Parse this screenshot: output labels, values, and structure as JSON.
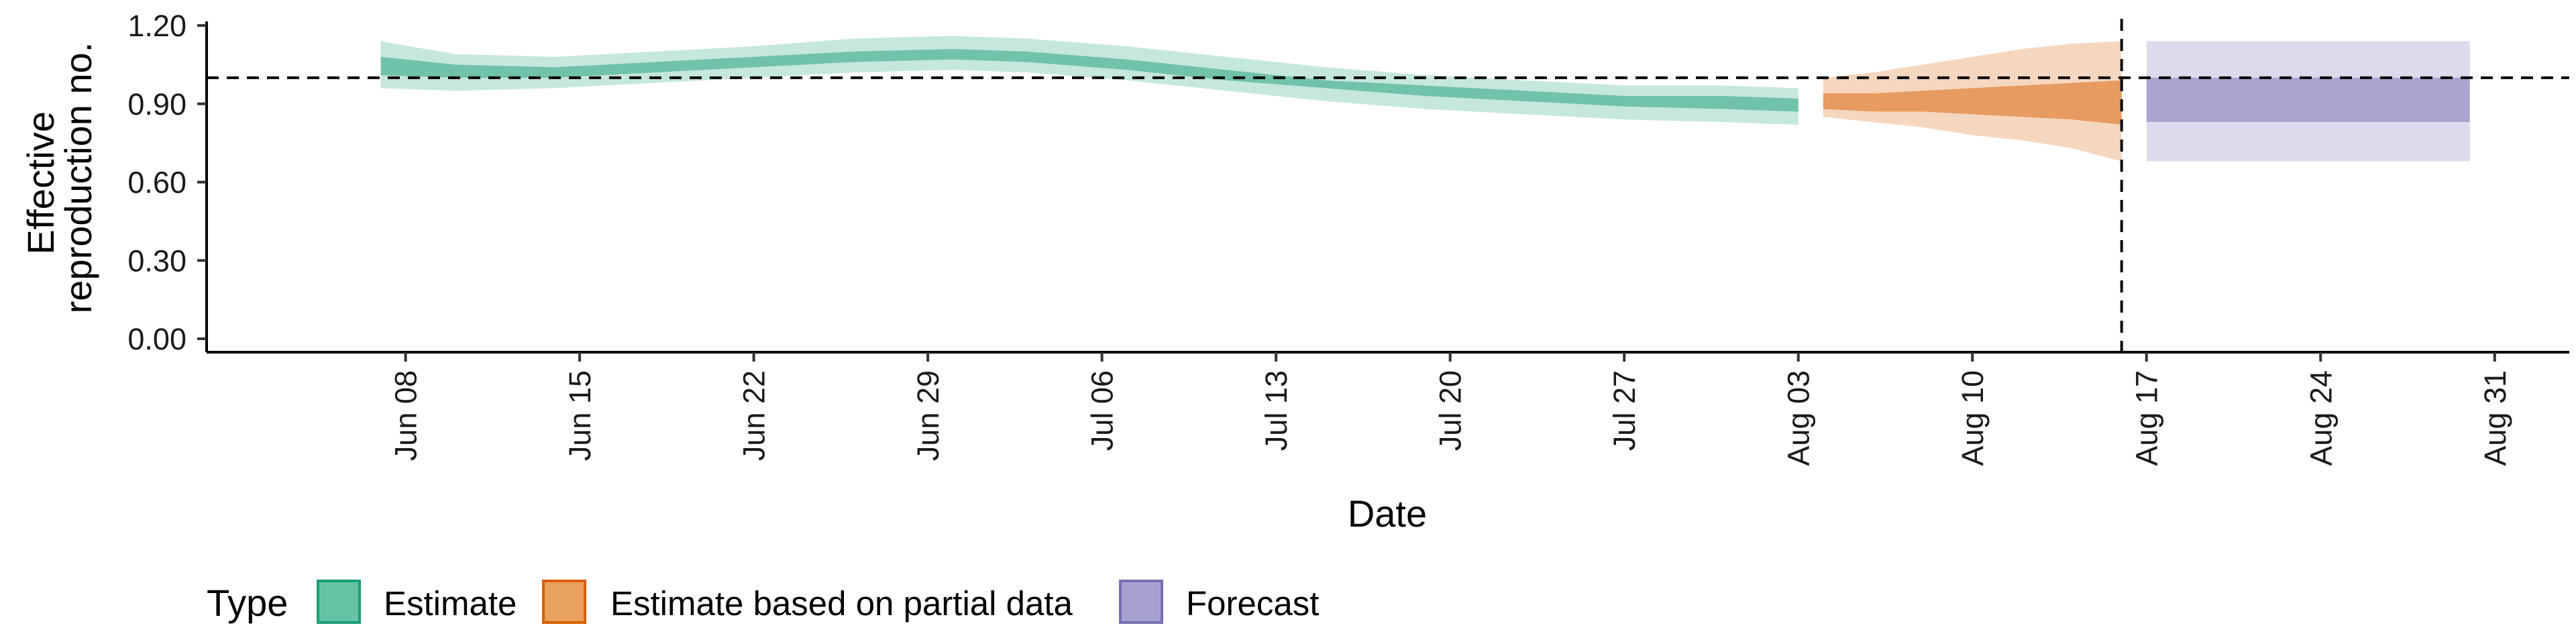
{
  "chart_data": {
    "type": "area",
    "xlabel": "Date",
    "ylabel_lines": [
      "Effective",
      "reproduction no."
    ],
    "ylim": [
      0,
      1.2
    ],
    "yticks": [
      0,
      0.3,
      0.6,
      0.9,
      1.2
    ],
    "ytick_labels": [
      "0.00",
      "0.30",
      "0.60",
      "0.90",
      "1.20"
    ],
    "xlim": [
      "2020-05-31",
      "2020-09-03"
    ],
    "xticks": [
      "2020-06-08",
      "2020-06-15",
      "2020-06-22",
      "2020-06-29",
      "2020-07-06",
      "2020-07-13",
      "2020-07-20",
      "2020-07-27",
      "2020-08-03",
      "2020-08-10",
      "2020-08-17",
      "2020-08-24",
      "2020-08-31"
    ],
    "xtick_labels": [
      "Jun 08",
      "Jun 15",
      "Jun 22",
      "Jun 29",
      "Jul 06",
      "Jul 13",
      "Jul 20",
      "Jul 27",
      "Aug 03",
      "Aug 10",
      "Aug 17",
      "Aug 24",
      "Aug 31"
    ],
    "reference_hline": 1.0,
    "reference_vline": "2020-08-16",
    "legend": {
      "title": "Type",
      "position": "bottom",
      "items": [
        {
          "label": "Estimate",
          "fill": "#66c2a5",
          "stroke": "#1b9e77"
        },
        {
          "label": "Estimate based on partial data",
          "fill": "#e8a15e",
          "stroke": "#d95f02"
        },
        {
          "label": "Forecast",
          "fill": "#a6a1cf",
          "stroke": "#7570b3"
        }
      ]
    },
    "series": [
      {
        "name": "Estimate",
        "color": "#1b9e77",
        "x": [
          "2020-06-07",
          "2020-06-10",
          "2020-06-14",
          "2020-06-18",
          "2020-06-22",
          "2020-06-26",
          "2020-06-30",
          "2020-07-03",
          "2020-07-07",
          "2020-07-11",
          "2020-07-15",
          "2020-07-19",
          "2020-07-23",
          "2020-07-27",
          "2020-07-31",
          "2020-08-03"
        ],
        "lower90": [
          0.96,
          0.95,
          0.96,
          0.98,
          1.0,
          1.02,
          1.03,
          1.02,
          0.99,
          0.95,
          0.91,
          0.88,
          0.86,
          0.84,
          0.83,
          0.82
        ],
        "lower50": [
          1.01,
          1.0,
          1.0,
          1.02,
          1.04,
          1.06,
          1.07,
          1.06,
          1.03,
          0.99,
          0.96,
          0.93,
          0.91,
          0.89,
          0.88,
          0.87
        ],
        "upper50": [
          1.08,
          1.05,
          1.04,
          1.06,
          1.08,
          1.1,
          1.11,
          1.1,
          1.07,
          1.03,
          0.99,
          0.97,
          0.95,
          0.93,
          0.93,
          0.92
        ],
        "upper90": [
          1.14,
          1.09,
          1.08,
          1.1,
          1.12,
          1.15,
          1.16,
          1.15,
          1.12,
          1.08,
          1.04,
          1.01,
          0.99,
          0.97,
          0.97,
          0.96
        ]
      },
      {
        "name": "Estimate based on partial data",
        "color": "#d95f02",
        "x": [
          "2020-08-04",
          "2020-08-06",
          "2020-08-08",
          "2020-08-10",
          "2020-08-12",
          "2020-08-14",
          "2020-08-16"
        ],
        "lower90": [
          0.85,
          0.83,
          0.81,
          0.78,
          0.76,
          0.73,
          0.68
        ],
        "lower50": [
          0.88,
          0.87,
          0.87,
          0.86,
          0.85,
          0.84,
          0.82
        ],
        "upper50": [
          0.94,
          0.94,
          0.95,
          0.96,
          0.97,
          0.98,
          0.99
        ],
        "upper90": [
          1.0,
          1.02,
          1.05,
          1.08,
          1.11,
          1.13,
          1.14
        ]
      },
      {
        "name": "Forecast",
        "color": "#7570b3",
        "x": [
          "2020-08-17",
          "2020-08-30"
        ],
        "lower90": [
          0.68,
          0.68
        ],
        "lower50": [
          0.83,
          0.83
        ],
        "upper50": [
          1.0,
          1.0
        ],
        "upper90": [
          1.14,
          1.14
        ]
      }
    ]
  }
}
